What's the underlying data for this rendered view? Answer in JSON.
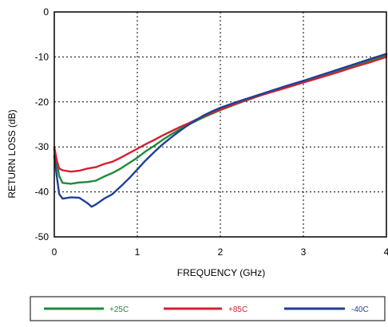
{
  "chart_data": {
    "type": "line",
    "title": "",
    "xlabel": "FREQUENCY (GHz)",
    "ylabel": "RETURN LOSS  (dB)",
    "xlim": [
      0,
      4
    ],
    "ylim": [
      -50,
      0
    ],
    "x_ticks": [
      "0",
      "1",
      "2",
      "3",
      "4"
    ],
    "y_ticks": [
      "0",
      "-10",
      "-20",
      "-30",
      "-40",
      "-50"
    ],
    "grid": "dotted",
    "legend_position": "bottom",
    "series": [
      {
        "name": "+25C",
        "color": "#1f8a3a",
        "points": [
          [
            0.0,
            -30.5
          ],
          [
            0.03,
            -33.5
          ],
          [
            0.06,
            -36.5
          ],
          [
            0.1,
            -38.0
          ],
          [
            0.2,
            -38.2
          ],
          [
            0.3,
            -37.9
          ],
          [
            0.4,
            -37.8
          ],
          [
            0.5,
            -37.5
          ],
          [
            0.6,
            -36.6
          ],
          [
            0.7,
            -35.8
          ],
          [
            0.8,
            -34.8
          ],
          [
            0.9,
            -33.6
          ],
          [
            1.0,
            -32.4
          ],
          [
            1.1,
            -31.0
          ],
          [
            1.2,
            -29.8
          ],
          [
            1.3,
            -28.5
          ],
          [
            1.4,
            -27.3
          ],
          [
            1.5,
            -26.2
          ],
          [
            1.6,
            -25.2
          ],
          [
            1.7,
            -24.3
          ],
          [
            1.8,
            -23.4
          ],
          [
            1.9,
            -22.6
          ],
          [
            2.0,
            -21.8
          ],
          [
            2.2,
            -20.4
          ],
          [
            2.4,
            -19.1
          ],
          [
            2.6,
            -17.8
          ],
          [
            2.8,
            -16.6
          ],
          [
            3.0,
            -15.5
          ],
          [
            3.2,
            -14.3
          ],
          [
            3.4,
            -13.1
          ],
          [
            3.6,
            -11.9
          ],
          [
            3.8,
            -10.8
          ],
          [
            4.0,
            -9.6
          ]
        ]
      },
      {
        "name": "+85C",
        "color": "#d42030",
        "points": [
          [
            0.0,
            -30.0
          ],
          [
            0.03,
            -33.0
          ],
          [
            0.06,
            -34.8
          ],
          [
            0.1,
            -35.2
          ],
          [
            0.2,
            -35.5
          ],
          [
            0.3,
            -35.3
          ],
          [
            0.4,
            -34.8
          ],
          [
            0.5,
            -34.5
          ],
          [
            0.6,
            -33.8
          ],
          [
            0.7,
            -33.3
          ],
          [
            0.8,
            -32.4
          ],
          [
            0.9,
            -31.4
          ],
          [
            1.0,
            -30.4
          ],
          [
            1.1,
            -29.4
          ],
          [
            1.2,
            -28.5
          ],
          [
            1.3,
            -27.5
          ],
          [
            1.4,
            -26.6
          ],
          [
            1.5,
            -25.7
          ],
          [
            1.6,
            -24.9
          ],
          [
            1.7,
            -24.0
          ],
          [
            1.8,
            -23.2
          ],
          [
            1.9,
            -22.4
          ],
          [
            2.0,
            -21.7
          ],
          [
            2.2,
            -20.3
          ],
          [
            2.4,
            -19.0
          ],
          [
            2.6,
            -17.9
          ],
          [
            2.8,
            -16.8
          ],
          [
            3.0,
            -15.7
          ],
          [
            3.2,
            -14.6
          ],
          [
            3.4,
            -13.5
          ],
          [
            3.6,
            -12.3
          ],
          [
            3.8,
            -11.2
          ],
          [
            4.0,
            -10.0
          ]
        ]
      },
      {
        "name": "-40C",
        "color": "#1f3f9a",
        "points": [
          [
            0.0,
            -32.0
          ],
          [
            0.03,
            -36.5
          ],
          [
            0.06,
            -40.5
          ],
          [
            0.1,
            -41.5
          ],
          [
            0.2,
            -41.2
          ],
          [
            0.3,
            -41.3
          ],
          [
            0.4,
            -42.5
          ],
          [
            0.45,
            -43.3
          ],
          [
            0.5,
            -42.8
          ],
          [
            0.6,
            -41.5
          ],
          [
            0.7,
            -40.5
          ],
          [
            0.8,
            -38.8
          ],
          [
            0.9,
            -37.0
          ],
          [
            1.0,
            -35.0
          ],
          [
            1.1,
            -33.0
          ],
          [
            1.2,
            -31.2
          ],
          [
            1.3,
            -29.5
          ],
          [
            1.4,
            -28.0
          ],
          [
            1.5,
            -26.6
          ],
          [
            1.6,
            -25.3
          ],
          [
            1.7,
            -24.1
          ],
          [
            1.8,
            -23.0
          ],
          [
            1.9,
            -22.1
          ],
          [
            2.0,
            -21.3
          ],
          [
            2.2,
            -20.0
          ],
          [
            2.4,
            -18.8
          ],
          [
            2.6,
            -17.6
          ],
          [
            2.8,
            -16.4
          ],
          [
            3.0,
            -15.3
          ],
          [
            3.2,
            -14.1
          ],
          [
            3.4,
            -12.9
          ],
          [
            3.6,
            -11.7
          ],
          [
            3.8,
            -10.5
          ],
          [
            4.0,
            -9.3
          ]
        ]
      }
    ]
  }
}
